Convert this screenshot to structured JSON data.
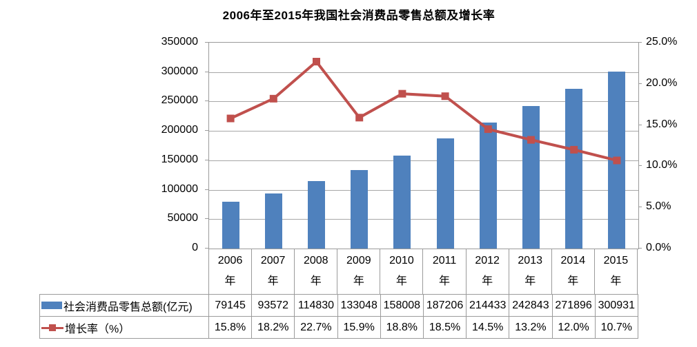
{
  "title": "2006年至2015年我国社会消费品零售总额及增长率",
  "chart_data": {
    "type": "bar+line combo",
    "title": "2006年至2015年我国社会消费品零售总额及增长率",
    "categories": [
      "2006年",
      "2007年",
      "2008年",
      "2009年",
      "2010年",
      "2011年",
      "2012年",
      "2013年",
      "2014年",
      "2015年"
    ],
    "series": [
      {
        "name": "社会消费品零售总额(亿元)",
        "type": "bar",
        "axis": "left",
        "color": "#4F81BD",
        "values": [
          79145,
          93572,
          114830,
          133048,
          158008,
          187206,
          214433,
          242843,
          271896,
          300931
        ],
        "display_values": [
          "79145",
          "93572",
          "114830",
          "133048",
          "158008",
          "187206",
          "214433",
          "242843",
          "271896",
          "300931"
        ]
      },
      {
        "name": "增长率（%）",
        "type": "line",
        "axis": "right",
        "color": "#C0504D",
        "values": [
          15.8,
          18.2,
          22.7,
          15.9,
          18.8,
          18.5,
          14.5,
          13.2,
          12.0,
          10.7
        ],
        "display_values": [
          "15.8%",
          "18.2%",
          "22.7%",
          "15.9%",
          "18.8%",
          "18.5%",
          "14.5%",
          "13.2%",
          "12.0%",
          "10.7%"
        ]
      }
    ],
    "left_axis": {
      "min": 0,
      "max": 350000,
      "step": 50000,
      "labels": [
        "0",
        "50000",
        "100000",
        "150000",
        "200000",
        "250000",
        "300000",
        "350000"
      ]
    },
    "right_axis": {
      "min": 0,
      "max": 25,
      "step": 5,
      "labels": [
        "0.0%",
        "5.0%",
        "10.0%",
        "15.0%",
        "20.0%",
        "25.0%"
      ]
    },
    "grid": true,
    "legend_position": "table-left-column"
  },
  "colors": {
    "bar": "#4F81BD",
    "line": "#C0504D",
    "grid": "#A6A6A6",
    "border": "#9A9A9A",
    "text": "#000000",
    "background": "#FFFFFF"
  }
}
